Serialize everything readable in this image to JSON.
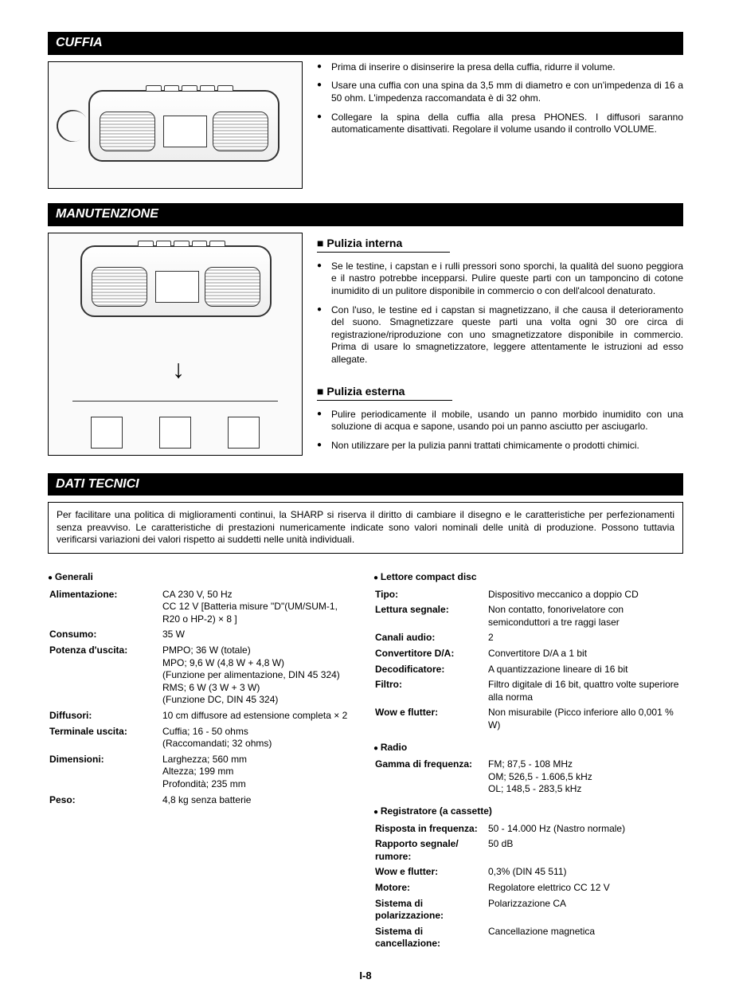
{
  "cuffia": {
    "title": "CUFFIA",
    "bullets": [
      "Prima di inserire o disinserire la presa della cuffia, ridurre il volume.",
      "Usare una cuffia con una spina da 3,5 mm di diametro e con un'impedenza di 16 a 50 ohm. L'impedenza raccomandata è di 32 ohm.",
      "Collegare la spina della cuffia alla presa PHONES. I diffusori saranno automaticamente disattivati. Regolare il volume usando il controllo VOLUME."
    ]
  },
  "manutenzione": {
    "title": "MANUTENZIONE",
    "interna": {
      "title": "Pulizia interna",
      "bullets": [
        "Se le testine, i capstan e i rulli pressori sono sporchi, la qualità del suono peggiora e il nastro potrebbe incepparsi. Pulire queste parti con un tamponcino di cotone inumidito di un pulitore disponibile in commercio o con dell'alcool denaturato.",
        "Con l'uso, le testine ed i capstan si magnetizzano, il che causa il deterioramento del suono. Smagnetizzare queste parti una volta ogni 30 ore circa di registrazione/riproduzione con uno smagnetizzatore disponibile in commercio. Prima di usare lo smagnetizzatore, leggere attentamente le istruzioni ad esso allegate."
      ]
    },
    "esterna": {
      "title": "Pulizia esterna",
      "bullets": [
        "Pulire periodicamente il mobile, usando un panno morbido inumidito con una soluzione di acqua e sapone, usando poi un panno asciutto per asciugarlo.",
        "Non utilizzare per la pulizia panni trattati chimicamente o prodotti chimici."
      ]
    }
  },
  "dati": {
    "title": "DATI TECNICI",
    "notice": "Per facilitare una politica di miglioramenti continui, la SHARP si riserva il diritto di cambiare il disegno e le caratteristiche per perfezionamenti senza preavviso. Le caratteristiche di prestazioni numericamente indicate sono valori nominali delle unità di produzione. Possono tuttavia verificarsi variazioni dei valori rispetto ai suddetti nelle unità individuali.",
    "generali": {
      "title": "Generali",
      "rows": [
        [
          "Alimentazione:",
          "CA 230 V, 50 Hz\nCC 12 V [Batteria misure \"D\"(UM/SUM-1, R20 o HP-2) × 8 ]"
        ],
        [
          "Consumo:",
          "35 W"
        ],
        [
          "Potenza d'uscita:",
          "PMPO; 36 W (totale)\nMPO; 9,6 W (4,8 W + 4,8 W)\n(Funzione per alimentazione, DIN 45 324)\nRMS; 6 W (3 W + 3 W)\n(Funzione DC, DIN 45 324)"
        ],
        [
          "Diffusori:",
          "10 cm diffusore ad estensione completa × 2"
        ],
        [
          "Terminale uscita:",
          "Cuffia; 16 - 50 ohms\n(Raccomandati; 32 ohms)"
        ],
        [
          "Dimensioni:",
          "Larghezza; 560 mm\nAltezza; 199 mm\nProfondità; 235 mm"
        ],
        [
          "Peso:",
          "4,8 kg senza batterie"
        ]
      ]
    },
    "cd": {
      "title": "Lettore compact disc",
      "rows": [
        [
          "Tipo:",
          "Dispositivo meccanico a doppio CD"
        ],
        [
          "Lettura segnale:",
          "Non contatto, fonorivelatore con semiconduttori a tre raggi laser"
        ],
        [
          "Canali audio:",
          "2"
        ],
        [
          "Convertitore D/A:",
          "Convertitore D/A a 1 bit"
        ],
        [
          "Decodificatore:",
          "A quantizzazione lineare di 16 bit"
        ],
        [
          "Filtro:",
          "Filtro digitale di 16 bit, quattro volte superiore alla norma"
        ],
        [
          "Wow e flutter:",
          "Non misurabile (Picco inferiore allo 0,001 % W)"
        ]
      ]
    },
    "radio": {
      "title": "Radio",
      "rows": [
        [
          "Gamma di frequenza:",
          "FM; 87,5 - 108 MHz\nOM; 526,5 - 1.606,5 kHz\nOL; 148,5 - 283,5 kHz"
        ]
      ]
    },
    "cassette": {
      "title": "Registratore (a cassette)",
      "rows": [
        [
          "Risposta in frequenza:",
          "50 - 14.000 Hz (Nastro normale)"
        ],
        [
          "Rapporto segnale/\nrumore:",
          "50 dB"
        ],
        [
          "Wow e flutter:",
          "0,3% (DIN 45 511)"
        ],
        [
          "Motore:",
          "Regolatore elettrico CC 12 V"
        ],
        [
          "Sistema di\npolarizzazione:",
          "Polarizzazione CA"
        ],
        [
          "Sistema di\ncancellazione:",
          "Cancellazione magnetica"
        ]
      ]
    }
  },
  "page": "I-8"
}
